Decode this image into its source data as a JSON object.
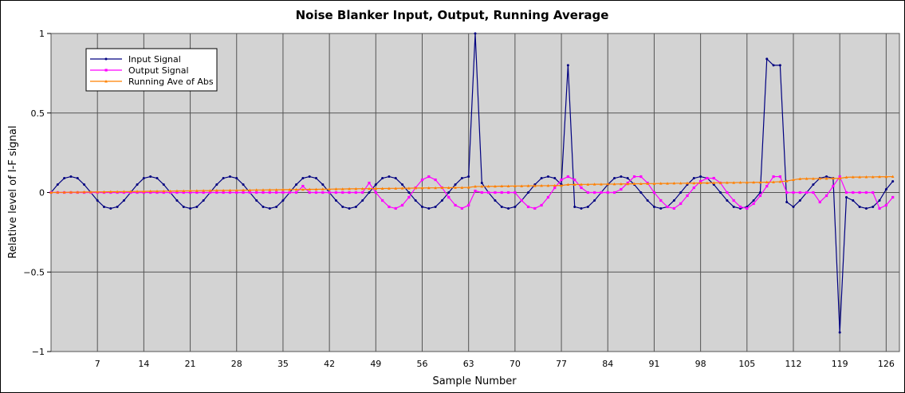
{
  "chart_data": {
    "type": "line",
    "title": "Noise Blanker Input, Output, Running Average",
    "xlabel": "Sample Number",
    "ylabel": "Relative level of I-F signal",
    "xlim": [
      0,
      128
    ],
    "ylim": [
      -1,
      1
    ],
    "x_ticks": [
      7,
      14,
      21,
      28,
      35,
      42,
      49,
      56,
      63,
      70,
      77,
      84,
      91,
      98,
      105,
      112,
      119,
      126
    ],
    "y_ticks": [
      1,
      0.5,
      0,
      -0.5,
      -1
    ],
    "y_tick_labels": [
      "1",
      "0.5",
      "0",
      "−0.5",
      "−1"
    ],
    "grid": true,
    "legend_position": "top-left",
    "series": [
      {
        "name": "Input Signal",
        "color": "#000080",
        "marker": "dot",
        "x": [
          0,
          1,
          2,
          3,
          4,
          5,
          6,
          7,
          8,
          9,
          10,
          11,
          12,
          13,
          14,
          15,
          16,
          17,
          18,
          19,
          20,
          21,
          22,
          23,
          24,
          25,
          26,
          27,
          28,
          29,
          30,
          31,
          32,
          33,
          34,
          35,
          36,
          37,
          38,
          39,
          40,
          41,
          42,
          43,
          44,
          45,
          46,
          47,
          48,
          49,
          50,
          51,
          52,
          53,
          54,
          55,
          56,
          57,
          58,
          59,
          60,
          61,
          62,
          63,
          64,
          65,
          66,
          67,
          68,
          69,
          70,
          71,
          72,
          73,
          74,
          75,
          76,
          77,
          78,
          79,
          80,
          81,
          82,
          83,
          84,
          85,
          86,
          87,
          88,
          89,
          90,
          91,
          92,
          93,
          94,
          95,
          96,
          97,
          98,
          99,
          100,
          101,
          102,
          103,
          104,
          105,
          106,
          107,
          108,
          109,
          110,
          111,
          112,
          113,
          114,
          115,
          116,
          117,
          118,
          119,
          120,
          121,
          122,
          123,
          124,
          125,
          126,
          127
        ],
        "y": [
          0,
          0.05,
          0.09,
          0.1,
          0.09,
          0.05,
          0,
          -0.05,
          -0.09,
          -0.1,
          -0.09,
          -0.05,
          0,
          0.05,
          0.09,
          0.1,
          0.09,
          0.05,
          0,
          -0.05,
          -0.09,
          -0.1,
          -0.09,
          -0.05,
          0,
          0.05,
          0.09,
          0.1,
          0.09,
          0.05,
          0,
          -0.05,
          -0.09,
          -0.1,
          -0.09,
          -0.05,
          0,
          0.05,
          0.09,
          0.1,
          0.09,
          0.05,
          0,
          -0.05,
          -0.09,
          -0.1,
          -0.09,
          -0.05,
          0,
          0.05,
          0.09,
          0.1,
          0.09,
          0.05,
          0,
          -0.05,
          -0.09,
          -0.1,
          -0.09,
          -0.05,
          0,
          0.05,
          0.09,
          0.1,
          1.0,
          0.06,
          0,
          -0.05,
          -0.09,
          -0.1,
          -0.09,
          -0.05,
          0,
          0.05,
          0.09,
          0.1,
          0.09,
          0.05,
          0.8,
          -0.09,
          -0.1,
          -0.09,
          -0.05,
          0,
          0.05,
          0.09,
          0.1,
          0.09,
          0.05,
          0,
          -0.05,
          -0.09,
          -0.1,
          -0.09,
          -0.05,
          0,
          0.05,
          0.09,
          0.1,
          0.09,
          0.05,
          0,
          -0.05,
          -0.09,
          -0.1,
          -0.09,
          -0.05,
          0,
          0.84,
          0.8,
          0.8,
          -0.06,
          -0.09,
          -0.05,
          0,
          0.05,
          0.09,
          0.1,
          0.09,
          -0.88,
          -0.03,
          -0.05,
          -0.09,
          -0.1,
          -0.09,
          -0.05,
          0.02,
          0.07
        ]
      },
      {
        "name": "Output Signal",
        "color": "#ff00ff",
        "marker": "square",
        "x": [
          0,
          1,
          2,
          3,
          4,
          5,
          6,
          7,
          8,
          9,
          10,
          11,
          12,
          13,
          14,
          15,
          16,
          17,
          18,
          19,
          20,
          21,
          22,
          23,
          24,
          25,
          26,
          27,
          28,
          29,
          30,
          31,
          32,
          33,
          34,
          35,
          36,
          37,
          38,
          39,
          40,
          41,
          42,
          43,
          44,
          45,
          46,
          47,
          48,
          49,
          50,
          51,
          52,
          53,
          54,
          55,
          56,
          57,
          58,
          59,
          60,
          61,
          62,
          63,
          64,
          65,
          66,
          67,
          68,
          69,
          70,
          71,
          72,
          73,
          74,
          75,
          76,
          77,
          78,
          79,
          80,
          81,
          82,
          83,
          84,
          85,
          86,
          87,
          88,
          89,
          90,
          91,
          92,
          93,
          94,
          95,
          96,
          97,
          98,
          99,
          100,
          101,
          102,
          103,
          104,
          105,
          106,
          107,
          108,
          109,
          110,
          111,
          112,
          113,
          114,
          115,
          116,
          117,
          118,
          119,
          120,
          121,
          122,
          123,
          124,
          125,
          126,
          127
        ],
        "y": [
          0,
          0,
          0,
          0,
          0,
          0,
          0,
          0,
          0,
          0,
          0,
          0,
          0,
          0,
          0,
          0,
          0,
          0,
          0,
          0,
          0,
          0,
          0,
          0,
          0,
          0,
          0,
          0,
          0,
          0,
          0,
          0,
          0,
          0,
          0,
          0,
          0,
          0,
          0.04,
          0,
          0,
          0,
          0,
          0,
          0,
          0,
          0,
          0,
          0.06,
          0,
          -0.05,
          -0.09,
          -0.1,
          -0.08,
          -0.03,
          0.03,
          0.08,
          0.1,
          0.08,
          0.03,
          -0.03,
          -0.08,
          -0.1,
          -0.08,
          0.01,
          0,
          0,
          0,
          0,
          0,
          0,
          -0.05,
          -0.09,
          -0.1,
          -0.08,
          -0.03,
          0.03,
          0.08,
          0.1,
          0.08,
          0.03,
          0,
          0,
          0,
          0,
          0,
          0.02,
          0.06,
          0.1,
          0.1,
          0.06,
          0,
          -0.05,
          -0.09,
          -0.1,
          -0.07,
          -0.02,
          0.03,
          0.07,
          0.09,
          0.09,
          0.06,
          0,
          -0.05,
          -0.09,
          -0.1,
          -0.07,
          -0.02,
          0.04,
          0.1,
          0.1,
          0,
          0,
          0,
          0,
          0,
          -0.06,
          -0.02,
          0.04,
          0.1,
          0,
          0,
          0,
          0,
          0,
          -0.1,
          -0.08,
          -0.03
        ]
      },
      {
        "name": "Running Ave of Abs",
        "color": "#ff8000",
        "marker": "tri",
        "x": [
          0,
          1,
          2,
          3,
          4,
          5,
          6,
          7,
          8,
          9,
          10,
          11,
          12,
          13,
          14,
          15,
          16,
          17,
          18,
          19,
          20,
          21,
          22,
          23,
          24,
          25,
          26,
          27,
          28,
          29,
          30,
          31,
          32,
          33,
          34,
          35,
          36,
          37,
          38,
          39,
          40,
          41,
          42,
          43,
          44,
          45,
          46,
          47,
          48,
          49,
          50,
          51,
          52,
          53,
          54,
          55,
          56,
          57,
          58,
          59,
          60,
          61,
          62,
          63,
          64,
          65,
          66,
          67,
          68,
          69,
          70,
          71,
          72,
          73,
          74,
          75,
          76,
          77,
          78,
          79,
          80,
          81,
          82,
          83,
          84,
          85,
          86,
          87,
          88,
          89,
          90,
          91,
          92,
          93,
          94,
          95,
          96,
          97,
          98,
          99,
          100,
          101,
          102,
          103,
          104,
          105,
          106,
          107,
          108,
          109,
          110,
          111,
          112,
          113,
          114,
          115,
          116,
          117,
          118,
          119,
          120,
          121,
          122,
          123,
          124,
          125,
          126,
          127
        ],
        "y": [
          0,
          0.001,
          0.001,
          0.002,
          0.002,
          0.003,
          0.003,
          0.004,
          0.004,
          0.005,
          0.005,
          0.006,
          0.006,
          0.007,
          0.007,
          0.008,
          0.008,
          0.009,
          0.009,
          0.01,
          0.01,
          0.011,
          0.011,
          0.012,
          0.012,
          0.013,
          0.013,
          0.014,
          0.014,
          0.015,
          0.015,
          0.016,
          0.016,
          0.017,
          0.017,
          0.018,
          0.018,
          0.019,
          0.019,
          0.02,
          0.02,
          0.021,
          0.021,
          0.022,
          0.022,
          0.023,
          0.023,
          0.024,
          0.024,
          0.025,
          0.025,
          0.026,
          0.026,
          0.027,
          0.027,
          0.028,
          0.028,
          0.029,
          0.029,
          0.03,
          0.03,
          0.031,
          0.031,
          0.032,
          0.038,
          0.038,
          0.039,
          0.039,
          0.04,
          0.04,
          0.041,
          0.041,
          0.042,
          0.042,
          0.043,
          0.043,
          0.044,
          0.044,
          0.05,
          0.05,
          0.051,
          0.051,
          0.052,
          0.052,
          0.053,
          0.053,
          0.054,
          0.054,
          0.055,
          0.055,
          0.056,
          0.056,
          0.057,
          0.057,
          0.058,
          0.058,
          0.059,
          0.059,
          0.06,
          0.06,
          0.061,
          0.061,
          0.062,
          0.062,
          0.063,
          0.063,
          0.064,
          0.064,
          0.065,
          0.066,
          0.068,
          0.072,
          0.08,
          0.086,
          0.087,
          0.087,
          0.088,
          0.088,
          0.089,
          0.089,
          0.096,
          0.097,
          0.097,
          0.098,
          0.098,
          0.099,
          0.099,
          0.1
        ]
      }
    ]
  }
}
